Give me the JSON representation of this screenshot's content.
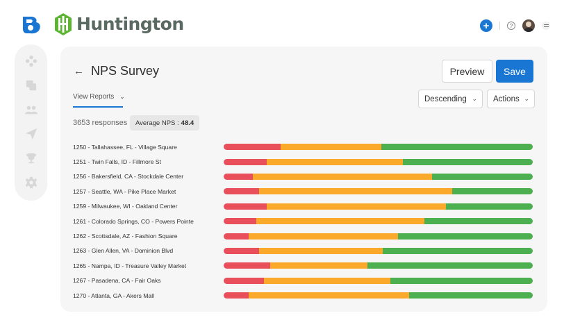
{
  "brand": {
    "name": "Huntington"
  },
  "page": {
    "title": "NPS Survey"
  },
  "toolbar": {
    "preview_label": "Preview",
    "save_label": "Save"
  },
  "view_reports": {
    "label": "View Reports"
  },
  "sort": {
    "selected": "Descending"
  },
  "actions": {
    "label": "Actions"
  },
  "summary": {
    "responses": "3653 responses",
    "avg_label": "Average NPS :",
    "avg_value": "48.4"
  },
  "colors": {
    "detractor": "#e94f5b",
    "passive": "#fba92b",
    "promoter": "#4caf50",
    "accent": "#1976d2"
  },
  "icons": {
    "app_logo": "b-logo-icon",
    "brand": "huntington-logo-icon",
    "top": [
      "plus-icon",
      "help-icon",
      "avatar",
      "menu-icon"
    ],
    "sidebar": [
      "dashboard-icon",
      "copy-icon",
      "people-icon",
      "send-icon",
      "trophy-icon",
      "settings-icon"
    ]
  },
  "locations": [
    {
      "label": "1250 - Tallahassee, FL - Village Square",
      "detractor": 18.5,
      "passive": 32.5,
      "promoter": 49
    },
    {
      "label": "1251 - Twin Falls, ID - Fillmore St",
      "detractor": 14,
      "passive": 44,
      "promoter": 42
    },
    {
      "label": "1256 - Bakersfield, CA - Stockdale Center",
      "detractor": 9.5,
      "passive": 58,
      "promoter": 32.5
    },
    {
      "label": "1257 - Seattle, WA - Pike Place Market",
      "detractor": 11.5,
      "passive": 62.5,
      "promoter": 26
    },
    {
      "label": "1259 - Milwaukee, WI - Oakland Center",
      "detractor": 14,
      "passive": 58,
      "promoter": 28
    },
    {
      "label": "1261 - Colorado Springs, CO - Powers Pointe",
      "detractor": 10.5,
      "passive": 54.5,
      "promoter": 35
    },
    {
      "label": "1262 - Scottsdale, AZ - Fashion Square",
      "detractor": 8,
      "passive": 48.5,
      "promoter": 43.5
    },
    {
      "label": "1263 - Glen Allen, VA - Dominion Blvd",
      "detractor": 11.5,
      "passive": 40,
      "promoter": 48.5
    },
    {
      "label": "1265 - Nampa, ID - Treasure Valley Market",
      "detractor": 15,
      "passive": 31.5,
      "promoter": 53.5
    },
    {
      "label": "1267 - Pasadena, CA - Fair Oaks",
      "detractor": 13,
      "passive": 41,
      "promoter": 46
    },
    {
      "label": "1270 - Atlanta, GA - Akers Mall",
      "detractor": 8,
      "passive": 52,
      "promoter": 40
    }
  ]
}
